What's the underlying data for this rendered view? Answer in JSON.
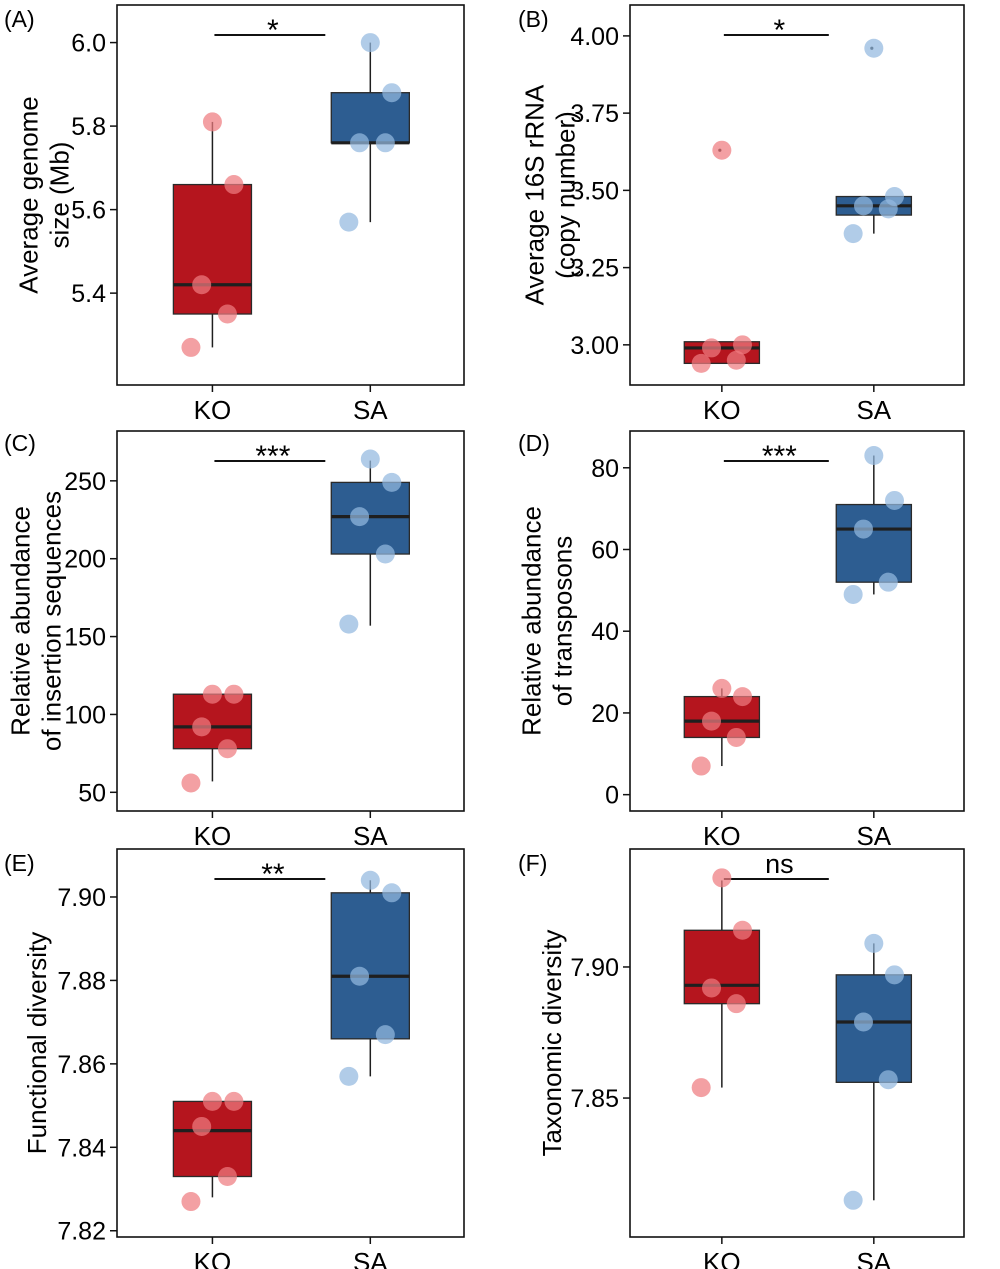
{
  "colors": {
    "ko_box": "#b5151e",
    "sa_box": "#2d5d91",
    "ko_point": "#ef7b7f",
    "sa_point": "#93b9df",
    "median": "#1f1f1f",
    "whisker": "#1f1f1f",
    "frame": "#111111"
  },
  "chart_data": [
    {
      "type": "box",
      "panel": "(A)",
      "ylabel": [
        "Average genome",
        "size (Mb)"
      ],
      "categories": [
        "KO",
        "SA"
      ],
      "yticks": [
        "5.4",
        "5.6",
        "5.8",
        "6.0"
      ],
      "ylim": [
        5.18,
        6.09
      ],
      "significance": "*",
      "series": [
        {
          "group": "KO",
          "min": 5.27,
          "q1": 5.35,
          "median": 5.42,
          "q3": 5.66,
          "max": 5.81,
          "points": [
            5.27,
            5.35,
            5.42,
            5.66,
            5.81
          ]
        },
        {
          "group": "SA",
          "min": 5.57,
          "q1": 5.76,
          "median": 5.76,
          "q3": 5.88,
          "max": 6.0,
          "points": [
            5.57,
            5.76,
            5.76,
            5.88,
            6.0
          ]
        }
      ]
    },
    {
      "type": "box",
      "panel": "(B)",
      "ylabel": [
        "Average 16S rRNA",
        "(copy number)"
      ],
      "categories": [
        "KO",
        "SA"
      ],
      "yticks": [
        "3.00",
        "3.25",
        "3.50",
        "3.75",
        "4.00"
      ],
      "ylim": [
        2.87,
        4.1
      ],
      "significance": "*",
      "series": [
        {
          "group": "KO",
          "min": 2.94,
          "q1": 2.94,
          "median": 2.99,
          "q3": 3.01,
          "max": 3.01,
          "points": [
            2.94,
            2.95,
            2.99,
            3.0,
            3.63
          ],
          "outliers": [
            3.63
          ]
        },
        {
          "group": "SA",
          "min": 3.36,
          "q1": 3.42,
          "median": 3.45,
          "q3": 3.48,
          "max": 3.48,
          "points": [
            3.36,
            3.44,
            3.45,
            3.48,
            3.96
          ],
          "outliers": [
            3.96
          ]
        }
      ]
    },
    {
      "type": "box",
      "panel": "(C)",
      "ylabel": [
        "Relative abundance",
        "of insertion sequences"
      ],
      "categories": [
        "KO",
        "SA"
      ],
      "yticks": [
        "50",
        "100",
        "150",
        "200",
        "250"
      ],
      "ylim": [
        38,
        282
      ],
      "significance": "***",
      "series": [
        {
          "group": "KO",
          "min": 57,
          "q1": 78,
          "median": 92,
          "q3": 113,
          "max": 113,
          "points": [
            56,
            78,
            92,
            113,
            113
          ]
        },
        {
          "group": "SA",
          "min": 157,
          "q1": 203,
          "median": 227,
          "q3": 249,
          "max": 263,
          "points": [
            158,
            203,
            227,
            249,
            264
          ]
        }
      ]
    },
    {
      "type": "box",
      "panel": "(D)",
      "ylabel": [
        "Relative abundance",
        "of transposons"
      ],
      "categories": [
        "KO",
        "SA"
      ],
      "yticks": [
        "0",
        "20",
        "40",
        "60",
        "80"
      ],
      "ylim": [
        -4,
        89
      ],
      "significance": "***",
      "series": [
        {
          "group": "KO",
          "min": 7,
          "q1": 14,
          "median": 18,
          "q3": 24,
          "max": 26,
          "points": [
            7,
            14,
            18,
            24,
            26
          ]
        },
        {
          "group": "SA",
          "min": 49,
          "q1": 52,
          "median": 65,
          "q3": 71,
          "max": 83,
          "points": [
            49,
            52,
            65,
            72,
            83
          ]
        }
      ]
    },
    {
      "type": "box",
      "panel": "(E)",
      "ylabel": [
        "Functional diversity"
      ],
      "categories": [
        "KO",
        "SA"
      ],
      "yticks": [
        "7.82",
        "7.84",
        "7.86",
        "7.88",
        "7.90"
      ],
      "ylim": [
        7.8185,
        7.9115
      ],
      "significance": "**",
      "series": [
        {
          "group": "KO",
          "min": 7.828,
          "q1": 7.833,
          "median": 7.844,
          "q3": 7.851,
          "max": 7.851,
          "points": [
            7.827,
            7.833,
            7.845,
            7.851,
            7.851
          ]
        },
        {
          "group": "SA",
          "min": 7.857,
          "q1": 7.866,
          "median": 7.881,
          "q3": 7.901,
          "max": 7.904,
          "points": [
            7.857,
            7.867,
            7.881,
            7.901,
            7.904
          ]
        }
      ]
    },
    {
      "type": "box",
      "panel": "(F)",
      "ylabel": [
        "Taxonomic diversity"
      ],
      "categories": [
        "KO",
        "SA"
      ],
      "yticks": [
        "7.85",
        "7.90"
      ],
      "ylim": [
        7.797,
        7.945
      ],
      "significance": "ns",
      "series": [
        {
          "group": "KO",
          "min": 7.854,
          "q1": 7.886,
          "median": 7.893,
          "q3": 7.914,
          "max": 7.933,
          "points": [
            7.854,
            7.886,
            7.892,
            7.914,
            7.934
          ]
        },
        {
          "group": "SA",
          "min": 7.811,
          "q1": 7.856,
          "median": 7.879,
          "q3": 7.897,
          "max": 7.909,
          "points": [
            7.811,
            7.857,
            7.879,
            7.897,
            7.909
          ]
        }
      ]
    }
  ]
}
